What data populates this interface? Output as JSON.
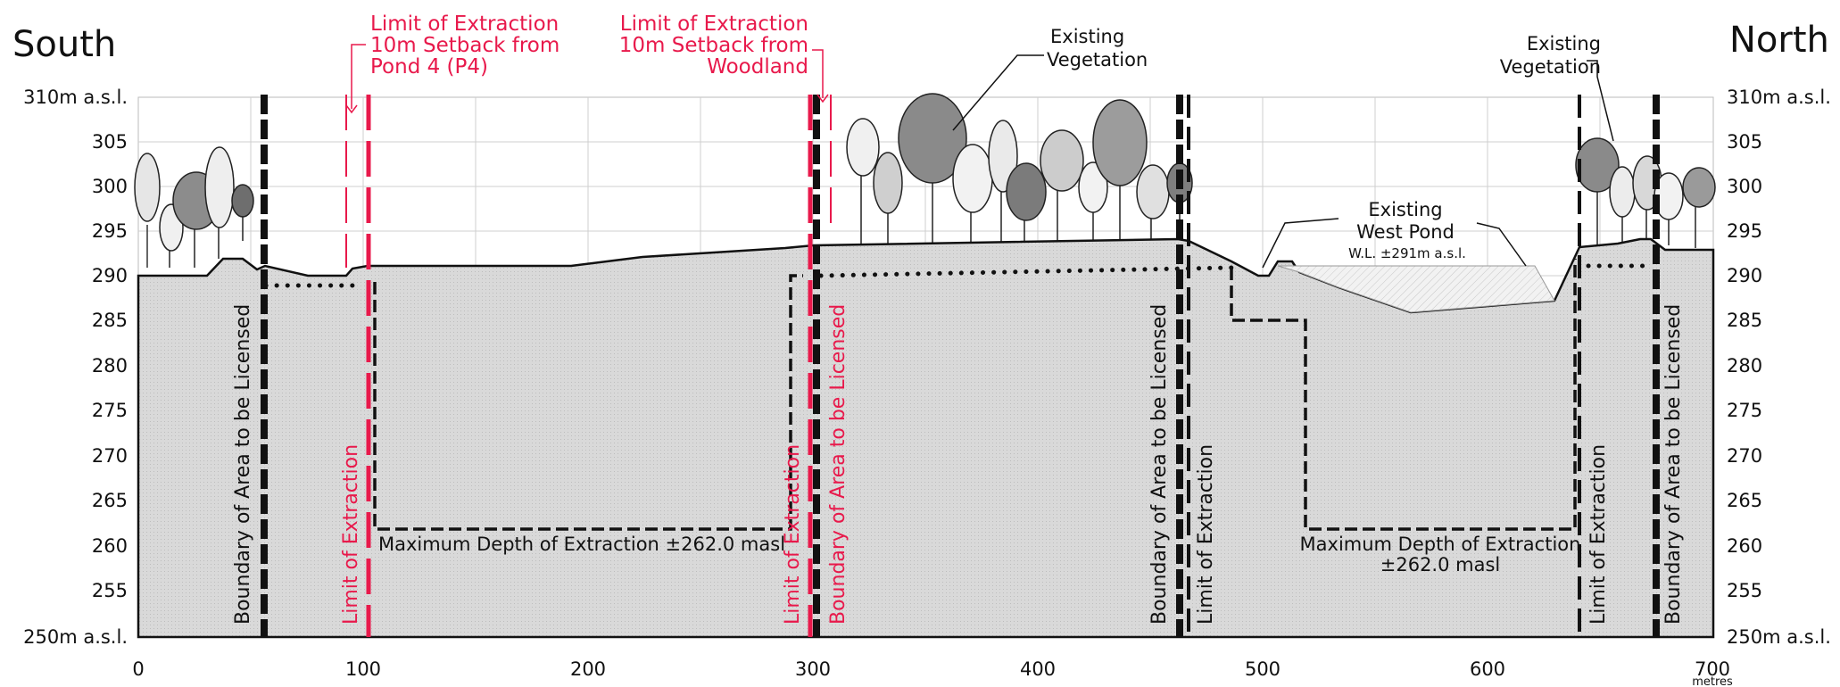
{
  "heading": {
    "south": "South",
    "north": "North"
  },
  "y_axis": {
    "left_top": "310m a.s.l.",
    "left_bottom": "250m a.s.l.",
    "right_top": "310m a.s.l.",
    "right_bottom": "250m a.s.l.",
    "ticks": [
      "305",
      "300",
      "295",
      "290",
      "285",
      "280",
      "275",
      "270",
      "265",
      "260",
      "255"
    ]
  },
  "x_axis": {
    "ticks": [
      "0",
      "100",
      "200",
      "300",
      "400",
      "500",
      "600",
      "700"
    ],
    "unit": "metres"
  },
  "callouts": {
    "setback_pond": [
      "Limit of Extraction",
      "10m Setback from",
      "Pond 4 (P4)"
    ],
    "setback_woodland": [
      "Limit of Extraction",
      "10m Setback from",
      "Woodland"
    ],
    "veg_center": [
      "Existing",
      "Vegetation"
    ],
    "veg_right": [
      "Existing",
      "Vegetation"
    ],
    "west_pond": [
      "Existing",
      "West Pond"
    ],
    "water_level": "W.L. ±291m a.s.l."
  },
  "vertical_labels": {
    "boundary_1": "Boundary of Area to be Licensed",
    "limit_1": "Limit of Extraction",
    "limit_2": "Limit of Extraction",
    "boundary_2": "Boundary of Area to be Licensed",
    "boundary_3": "Boundary of Area to be Licensed",
    "limit_3": "Limit of Extraction",
    "limit_4": "Limit of Extraction",
    "boundary_4": "Boundary of Area to be Licensed"
  },
  "depth_labels": {
    "left": "Maximum Depth of Extraction ±262.0 masl",
    "right": [
      "Maximum Depth of Extraction",
      "±262.0 masl"
    ]
  },
  "colors": {
    "accent_red": "#e8194b",
    "ground": "#dcdcdc",
    "line": "#111111"
  }
}
